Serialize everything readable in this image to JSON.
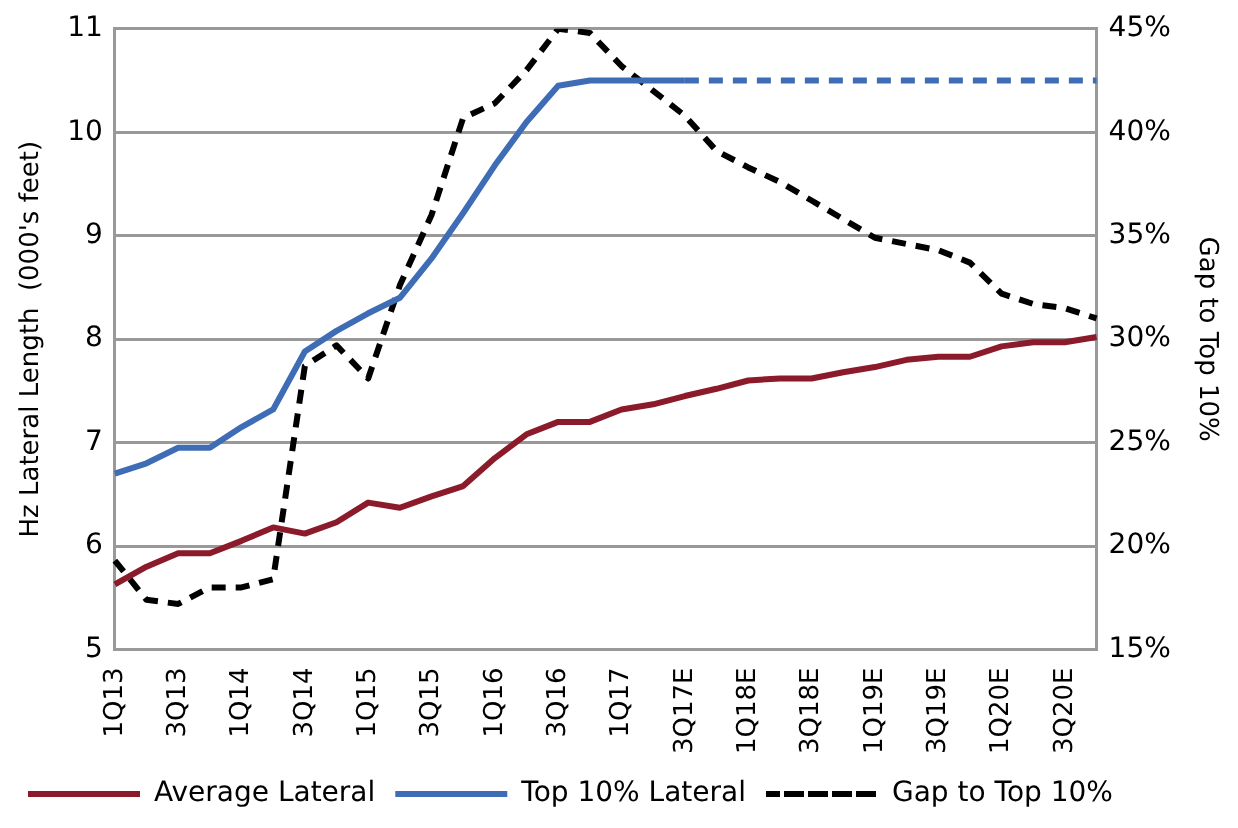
{
  "chart_data": {
    "type": "line",
    "ylabel": "Hz Lateral Length  (000's feet)",
    "y2label": "Gap to Top 10%",
    "categories": [
      "1Q13",
      null,
      "3Q13",
      null,
      "1Q14",
      null,
      "3Q14",
      null,
      "1Q15",
      null,
      "3Q15",
      null,
      "1Q16",
      null,
      "3Q16",
      null,
      "1Q17",
      null,
      "3Q17E",
      null,
      "1Q18E",
      null,
      "3Q18E",
      null,
      "1Q19E",
      null,
      "3Q19E",
      null,
      "1Q20E",
      null,
      "3Q20E",
      null
    ],
    "series": [
      {
        "name": "Average Lateral",
        "color": "#8b1a2b",
        "line_style": "solid",
        "values": [
          5.63,
          5.8,
          5.93,
          5.93,
          6.05,
          6.18,
          6.12,
          6.23,
          6.42,
          6.37,
          6.48,
          6.58,
          6.85,
          7.08,
          7.2,
          7.2,
          7.32,
          7.37,
          7.45,
          7.52,
          7.6,
          7.62,
          7.62,
          7.68,
          7.73,
          7.8,
          7.83,
          7.83,
          7.93,
          7.97,
          7.97,
          8.02
        ]
      },
      {
        "name": "Top 10% Lateral",
        "color": "#3f6db5",
        "line_style": "solid",
        "values": [
          6.7,
          6.8,
          6.95,
          6.95,
          7.15,
          7.32,
          7.88,
          8.08,
          8.25,
          8.4,
          8.78,
          9.22,
          9.68,
          10.1,
          10.45,
          10.5,
          10.5,
          10.5,
          10.5,
          null,
          null,
          null,
          null,
          null,
          null,
          null,
          null,
          null,
          null,
          null,
          null,
          null
        ]
      },
      {
        "color": "#3f6db5",
        "line_style": "dashed",
        "values": [
          null,
          null,
          null,
          null,
          null,
          null,
          null,
          null,
          null,
          null,
          null,
          null,
          null,
          null,
          null,
          null,
          null,
          null,
          10.5,
          10.5,
          10.5,
          10.5,
          10.5,
          10.5,
          10.5,
          10.5,
          10.5,
          10.5,
          10.5,
          10.5,
          10.5,
          10.5
        ]
      },
      {
        "name": "Gap to Top 10%",
        "color": "#000000",
        "line_style": "dashed",
        "axis": "y2",
        "values": [
          19.3,
          17.4,
          17.2,
          18,
          18,
          18.4,
          28.7,
          29.7,
          28.1,
          32.6,
          36,
          40.7,
          41.4,
          43,
          45,
          44.8,
          43.2,
          42,
          40.8,
          39.1,
          38.3,
          37.6,
          36.7,
          35.8,
          34.9,
          34.6,
          34.3,
          33.7,
          32.2,
          31.7,
          31.5,
          31
        ]
      }
    ],
    "ylim": [
      5,
      11
    ],
    "yticks": [
      5,
      6,
      7,
      8,
      9,
      10,
      11
    ],
    "y2lim": [
      15,
      45
    ],
    "y2ticks": [
      {
        "value": 15,
        "label": "15%"
      },
      {
        "value": 20,
        "label": "20%"
      },
      {
        "value": 25,
        "label": "25%"
      },
      {
        "value": 30,
        "label": "30%"
      },
      {
        "value": 35,
        "label": "35%"
      },
      {
        "value": 40,
        "label": "40%"
      },
      {
        "value": 45,
        "label": "45%"
      }
    ],
    "grid": "y",
    "legend": "bottom",
    "marker": "none"
  }
}
